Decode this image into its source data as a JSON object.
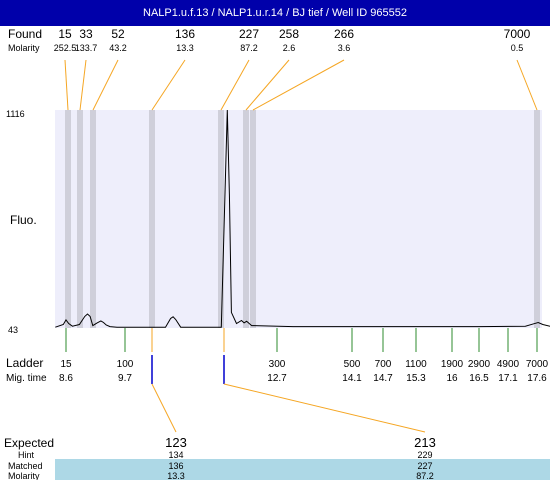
{
  "title": "NALP1.u.f.13 / NALP1.u.r.14 / BJ tief / Well ID 965552",
  "labels": {
    "found": "Found",
    "molarity": "Molarity",
    "fluo": "Fluo.",
    "ladder": "Ladder",
    "mig_time": "Mig. time",
    "expected": "Expected",
    "hint": "Hint",
    "matched": "Matched",
    "molarity_bottom": "Molarity"
  },
  "colors": {
    "title_bg": "#0000aa",
    "plot_bg": "#eeeefb",
    "band": "#c9c9d3",
    "connector": "#f5a623",
    "ladder_tick": "#2e8b2e",
    "expected_tick": "#0000cc",
    "matched_band": "#add8e6"
  },
  "chart_data": {
    "type": "line",
    "title": "NALP1.u.f.13 / NALP1.u.r.14 / BJ tief / Well ID 965552",
    "ylabel": "Fluo.",
    "xlabel": "Mig. time",
    "ylim": [
      43,
      1116
    ],
    "y_ticks": [
      "1116",
      "43"
    ],
    "found_peaks": [
      {
        "size": "15",
        "molarity": "252.5"
      },
      {
        "size": "33",
        "molarity": "133.7"
      },
      {
        "size": "52",
        "molarity": "43.2"
      },
      {
        "size": "136",
        "molarity": "13.3"
      },
      {
        "size": "227",
        "molarity": "87.2"
      },
      {
        "size": "258",
        "molarity": "2.6"
      },
      {
        "size": "266",
        "molarity": "3.6"
      },
      {
        "size": "7000",
        "molarity": "0.5"
      }
    ],
    "ladder": [
      {
        "size": "15",
        "time": "8.6"
      },
      {
        "size": "100",
        "time": "9.7"
      },
      {
        "size": "300",
        "time": "12.7"
      },
      {
        "size": "500",
        "time": "14.1"
      },
      {
        "size": "700",
        "time": "14.7"
      },
      {
        "size": "1100",
        "time": "15.3"
      },
      {
        "size": "1900",
        "time": "16"
      },
      {
        "size": "2900",
        "time": "16.5"
      },
      {
        "size": "4900",
        "time": "17.1"
      },
      {
        "size": "7000",
        "time": "17.6"
      }
    ],
    "trace": {
      "x": [
        8.4,
        8.55,
        8.6,
        8.65,
        8.72,
        8.85,
        8.95,
        9.0,
        9.05,
        9.1,
        9.18,
        9.25,
        9.3,
        9.35,
        9.42,
        9.55,
        10.5,
        10.6,
        10.65,
        10.7,
        10.8,
        11.6,
        11.68,
        11.72,
        11.76,
        11.8,
        11.9,
        12.0,
        12.05,
        12.1,
        12.2,
        13.0,
        16.5,
        17.4,
        17.55,
        17.62,
        17.7,
        17.85
      ],
      "y": [
        47,
        60,
        83,
        65,
        52,
        60,
        100,
        112,
        100,
        55,
        68,
        78,
        70,
        58,
        50,
        47,
        47,
        90,
        98,
        85,
        47,
        47,
        760,
        1116,
        700,
        120,
        65,
        80,
        68,
        76,
        55,
        50,
        50,
        52,
        64,
        70,
        60,
        50
      ]
    },
    "expected": [
      {
        "size": "123",
        "hint": "134",
        "matched": "136",
        "molarity": "13.3"
      },
      {
        "size": "213",
        "hint": "229",
        "matched": "227",
        "molarity": "87.2"
      }
    ]
  }
}
